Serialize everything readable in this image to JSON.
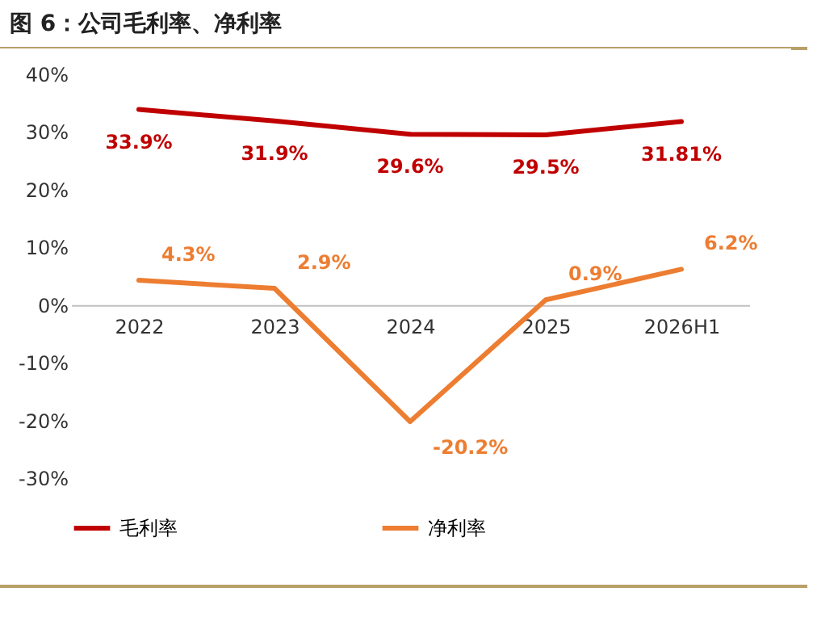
{
  "chart_data": {
    "type": "line",
    "title": "图 6：公司毛利率、净利率",
    "categories": [
      "2022",
      "2023",
      "2024",
      "2025",
      "2026H1"
    ],
    "series": [
      {
        "name": "毛利率",
        "color": "#c00000",
        "values": [
          33.9,
          31.9,
          29.6,
          29.5,
          31.81
        ],
        "value_labels": [
          "33.9%",
          "31.9%",
          "29.6%",
          "29.5%",
          "31.81%"
        ]
      },
      {
        "name": "净利率",
        "color": "#ed7d31",
        "values": [
          4.3,
          2.9,
          -20.2,
          0.9,
          6.2
        ],
        "value_labels": [
          "4.3%",
          "2.9%",
          "-20.2%",
          "0.9%",
          "6.2%"
        ]
      }
    ],
    "ylim": [
      -30,
      40
    ],
    "yticks": [
      {
        "value": -30,
        "label": "-30%"
      },
      {
        "value": -20,
        "label": "-20%"
      },
      {
        "value": -10,
        "label": "-10%"
      },
      {
        "value": 0,
        "label": "0%"
      },
      {
        "value": 10,
        "label": "10%"
      },
      {
        "value": 20,
        "label": "20%"
      },
      {
        "value": 30,
        "label": "30%"
      },
      {
        "value": 40,
        "label": "40%"
      }
    ],
    "grid": false,
    "legend": "bottom",
    "marker": "none",
    "line_style": "solid"
  }
}
